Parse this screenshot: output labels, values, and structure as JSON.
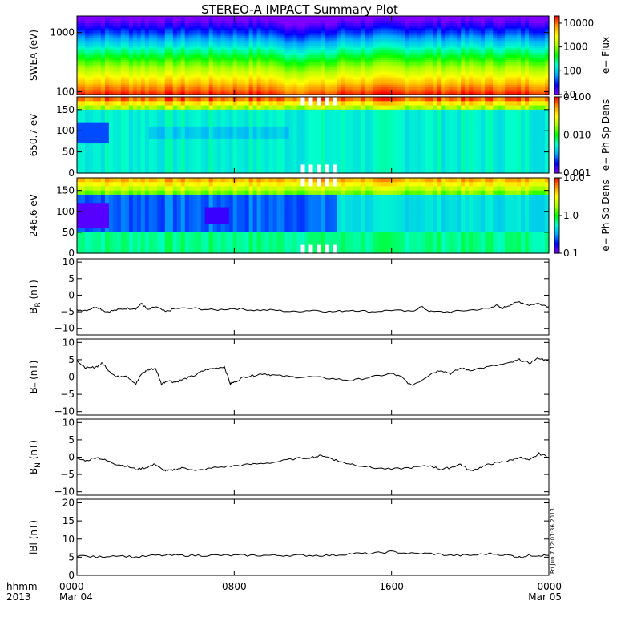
{
  "title": "STEREO-A IMPACT Summary Plot",
  "timestamp_note": "Fri Jun  7 12:01:36 2013",
  "x_axis": {
    "corner_labels": [
      "hhmm",
      "2013"
    ],
    "ticks": [
      {
        "time": "0000",
        "date": "Mar 04",
        "hours": 0
      },
      {
        "time": "0800",
        "date": "",
        "hours": 8
      },
      {
        "time": "1600",
        "date": "",
        "hours": 16
      },
      {
        "time": "0000",
        "date": "Mar 05",
        "hours": 24
      }
    ],
    "range_hours": [
      0,
      24
    ]
  },
  "colors": {
    "line": "#000000",
    "colormap": [
      "#7f00ff",
      "#0000ff",
      "#00aaff",
      "#00ffcc",
      "#00ff00",
      "#aaff00",
      "#ffff00",
      "#ff9900",
      "#ff0000"
    ]
  },
  "chart_data": [
    {
      "type": "heatmap",
      "ylabel": "SWEA (eV)",
      "ytick_labels": [
        "1000",
        "100"
      ],
      "ytick_values": [
        1000,
        100
      ],
      "ylim": [
        90,
        1900
      ],
      "y_scale": "log",
      "colorbar": {
        "label": "e− Flux",
        "ticks": [
          "10000",
          "1000",
          "100",
          "10"
        ],
        "scale": "log",
        "range": [
          10,
          20000
        ]
      },
      "description_of_values": "Flux decreasing with energy: red/orange near 100 eV, green 300-700 eV, blue/purple near 2000 eV"
    },
    {
      "type": "heatmap",
      "ylabel": "650.7 eV",
      "ytick_labels": [
        "150",
        "100",
        "50",
        "0"
      ],
      "ytick_values": [
        150,
        100,
        50,
        0
      ],
      "ylim": [
        0,
        180
      ],
      "y_scale": "linear",
      "colorbar": {
        "label": "e−  Ph Sp Dens",
        "ticks": [
          "0.100",
          "0.010",
          "0.001"
        ],
        "scale": "log",
        "range": [
          0.001,
          0.1
        ]
      },
      "description_of_values": "Pitch angle distribution; high (orange) near 180, cyan elsewhere, blue patch 80-110 early Mar 04, data gap 11:30-13:30"
    },
    {
      "type": "heatmap",
      "ylabel": "246.6 eV",
      "ytick_labels": [
        "150",
        "100",
        "50",
        "0"
      ],
      "ytick_values": [
        150,
        100,
        50,
        0
      ],
      "ylim": [
        0,
        180
      ],
      "y_scale": "linear",
      "colorbar": {
        "label": "e−  Ph Sp Dens",
        "ticks": [
          "10.0",
          "1.0",
          "0.1"
        ],
        "scale": "log",
        "range": [
          0.1,
          10
        ]
      },
      "description_of_values": "Pitch angle distribution; green/yellow near 180, blue/purple 60-120 before 13:00, cyan after 13:00"
    },
    {
      "type": "line",
      "ylabel": "B_R (nT)",
      "ylabel_main": "B",
      "ylabel_sub": "R",
      "ylabel_unit": "(nT)",
      "ytick_labels": [
        "10",
        "5",
        "0",
        "−5",
        "−10"
      ],
      "ytick_values": [
        10,
        5,
        0,
        -5,
        -10
      ],
      "ylim": [
        -12,
        11
      ],
      "x": [
        0,
        0.5,
        1,
        1.5,
        2,
        2.5,
        3,
        3.3,
        3.6,
        4,
        4.5,
        5,
        6,
        7,
        8,
        9,
        10,
        11,
        12,
        13,
        14,
        15,
        16,
        17,
        17.5,
        18,
        19,
        20,
        21,
        21.3,
        21.6,
        22,
        22.5,
        23,
        23.5,
        24
      ],
      "values": [
        -4.5,
        -4.5,
        -3.5,
        -5,
        -4.5,
        -4,
        -4,
        -2.5,
        -4.5,
        -3.5,
        -5,
        -4,
        -4,
        -4.5,
        -4,
        -4.5,
        -4.5,
        -5,
        -4.5,
        -5,
        -4.5,
        -5,
        -4.5,
        -5,
        -3.5,
        -5,
        -5,
        -4.5,
        -4,
        -3,
        -4,
        -3,
        -2,
        -3,
        -2.5,
        -3.5
      ]
    },
    {
      "type": "line",
      "ylabel": "B_T (nT)",
      "ylabel_main": "B",
      "ylabel_sub": "T",
      "ylabel_unit": "(nT)",
      "ytick_labels": [
        "10",
        "5",
        "0",
        "−5",
        "−10"
      ],
      "ytick_values": [
        10,
        5,
        0,
        -5,
        -10
      ],
      "ylim": [
        -11,
        11
      ],
      "x": [
        0,
        0.3,
        0.6,
        1,
        1.3,
        1.6,
        2,
        2.5,
        3,
        3.3,
        3.6,
        4,
        4.3,
        4.6,
        5,
        5.5,
        6,
        6.5,
        7,
        7.5,
        7.8,
        8,
        8.5,
        9,
        9.5,
        10,
        11,
        12,
        13,
        14,
        15,
        16,
        16.5,
        17,
        17.5,
        18,
        18.5,
        19,
        19.5,
        20,
        21,
        22,
        22.5,
        23,
        23.5,
        24
      ],
      "values": [
        5,
        3,
        2.5,
        3,
        4,
        2,
        0,
        0.5,
        -2,
        1,
        2,
        2.5,
        -2,
        -1,
        -1.5,
        -0.5,
        0.5,
        2,
        2.5,
        3,
        -2,
        -1.5,
        0,
        0.5,
        1,
        0.5,
        0,
        0,
        -0.5,
        -1,
        0,
        1,
        0,
        -2.5,
        -1,
        1,
        2,
        1,
        2.5,
        2,
        3,
        4,
        5,
        4,
        5.5,
        4.5
      ]
    },
    {
      "type": "line",
      "ylabel": "B_N (nT)",
      "ylabel_main": "B",
      "ylabel_sub": "N",
      "ylabel_unit": "(nT)",
      "ytick_labels": [
        "10",
        "5",
        "0",
        "−5",
        "−10"
      ],
      "ytick_values": [
        10,
        5,
        0,
        -5,
        -10
      ],
      "ylim": [
        -11,
        11
      ],
      "x": [
        0,
        0.5,
        1,
        1.5,
        2,
        2.5,
        3,
        3.5,
        4,
        4.3,
        4.6,
        5,
        5.5,
        6,
        7,
        8,
        9,
        10,
        11,
        12,
        12.5,
        13,
        13.5,
        14,
        15,
        16,
        17,
        18,
        18.5,
        19,
        19.5,
        20,
        20.5,
        21,
        21.5,
        22,
        22.5,
        23,
        23.5,
        24
      ],
      "values": [
        -0.5,
        -1,
        0,
        -1,
        -2,
        -2.5,
        -3.5,
        -3,
        -2,
        -3.5,
        -4,
        -3.5,
        -3,
        -4,
        -3,
        -2.5,
        -2,
        -1.5,
        -0.5,
        0,
        0.5,
        -0.5,
        -1.5,
        -2,
        -3,
        -3.5,
        -3,
        -2.5,
        -3.5,
        -3,
        -2,
        -4,
        -3,
        -2,
        -1.5,
        -1,
        0,
        -1,
        1,
        0
      ]
    },
    {
      "type": "line",
      "ylabel": "|B| (nT)",
      "ylabel_main": "lBl",
      "ylabel_sub": "",
      "ylabel_unit": "(nT)",
      "ytick_labels": [
        "20",
        "15",
        "10",
        "5",
        "0"
      ],
      "ytick_values": [
        20,
        15,
        10,
        5,
        0
      ],
      "ylim": [
        0,
        21
      ],
      "x": [
        0,
        1,
        2,
        3,
        4,
        5,
        6,
        7,
        8,
        9,
        10,
        11,
        12,
        13,
        14,
        15,
        16,
        17,
        18,
        19,
        20,
        21,
        22,
        22.5,
        23,
        23.5,
        24
      ],
      "values": [
        5.5,
        5,
        5.5,
        5,
        5.5,
        5.5,
        5.5,
        5.5,
        5.5,
        5.5,
        5.5,
        5.5,
        5.5,
        5.5,
        6,
        6,
        6.5,
        6,
        6,
        5.5,
        5.5,
        6,
        5.5,
        5,
        5.5,
        5.5,
        5.5
      ]
    }
  ]
}
